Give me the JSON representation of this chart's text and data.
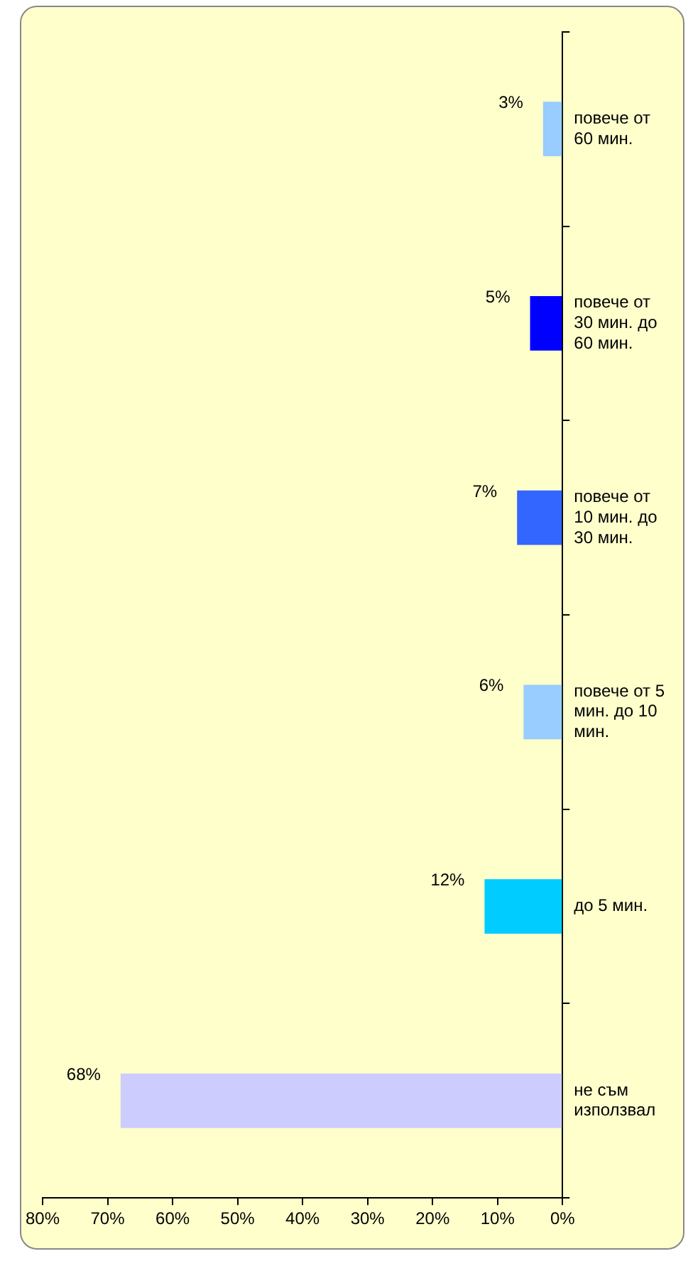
{
  "chart_data": {
    "type": "bar",
    "orientation": "horizontal",
    "categories": [
      "повече от 60 мин.",
      "повече от 30 мин. до 60 мин.",
      "повече от 10 мин. до 30 мин.",
      "повече от 5 мин. до 10 мин.",
      "до 5 мин.",
      "не съм използвал"
    ],
    "values": [
      3,
      5,
      7,
      6,
      12,
      68
    ],
    "colors": [
      "#99ccff",
      "#0000ff",
      "#3366ff",
      "#99ccff",
      "#00ccff",
      "#ccccff"
    ],
    "value_labels": [
      "3%",
      "5%",
      "7%",
      "6%",
      "12%",
      "68%"
    ],
    "xlim": [
      80,
      0
    ],
    "xticks": [
      {
        "value": 80,
        "label": "80%"
      },
      {
        "value": 70,
        "label": "70%"
      },
      {
        "value": 60,
        "label": "60%"
      },
      {
        "value": 50,
        "label": "50%"
      },
      {
        "value": 40,
        "label": "40%"
      },
      {
        "value": 30,
        "label": "30%"
      },
      {
        "value": 20,
        "label": "20%"
      },
      {
        "value": 10,
        "label": "10%"
      },
      {
        "value": 0,
        "label": "0%"
      }
    ],
    "grid": false,
    "legend": false
  }
}
